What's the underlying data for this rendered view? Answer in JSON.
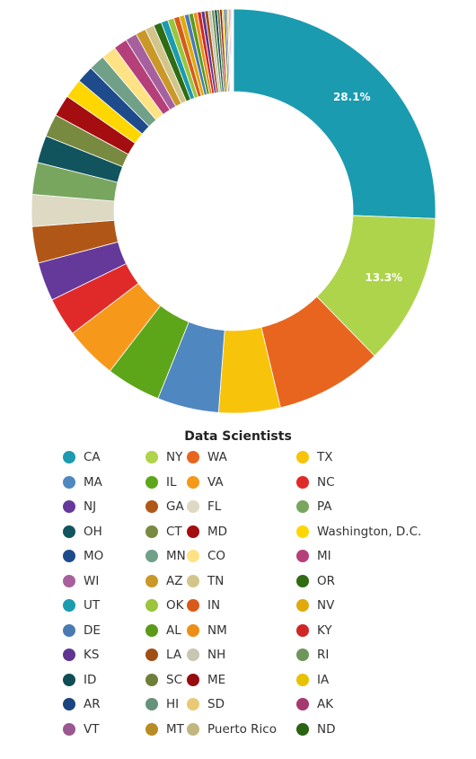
{
  "chart_data": {
    "type": "pie",
    "subtype": "donut",
    "title": "Data Scientists",
    "value_unit": "%",
    "shown_labels": [
      "28.1%",
      "13.3%"
    ],
    "categories": [
      "CA",
      "NY",
      "WA",
      "TX",
      "MA",
      "IL",
      "VA",
      "NC",
      "NJ",
      "GA",
      "FL",
      "PA",
      "OH",
      "CT",
      "MD",
      "Washington, D.C.",
      "MO",
      "MN",
      "CO",
      "MI",
      "WI",
      "AZ",
      "TN",
      "OR",
      "UT",
      "OK",
      "IN",
      "NV",
      "DE",
      "AL",
      "NM",
      "KY",
      "KS",
      "LA",
      "NH",
      "RI",
      "ID",
      "SC",
      "ME",
      "IA",
      "AR",
      "HI",
      "SD",
      "AK",
      "VT",
      "MT",
      "Puerto Rico",
      "ND"
    ],
    "values": [
      28.1,
      13.3,
      9.4,
      5.4,
      5.4,
      4.8,
      4.6,
      3.4,
      3.4,
      3.2,
      2.8,
      2.8,
      2.4,
      2.0,
      1.9,
      1.7,
      1.5,
      1.4,
      1.3,
      1.2,
      1.0,
      0.9,
      0.8,
      0.7,
      0.6,
      0.55,
      0.5,
      0.45,
      0.4,
      0.38,
      0.36,
      0.34,
      0.32,
      0.3,
      0.28,
      0.26,
      0.24,
      0.22,
      0.2,
      0.18,
      0.16,
      0.14,
      0.12,
      0.1,
      0.09,
      0.08,
      0.07,
      0.06
    ],
    "colors": [
      "#1a9bb0",
      "#aed44b",
      "#e8651f",
      "#f8c30b",
      "#4f87c0",
      "#5ea619",
      "#f6991b",
      "#e02a2a",
      "#65399a",
      "#b05717",
      "#ddd9c3",
      "#78a65f",
      "#11545e",
      "#788a3f",
      "#a40e11",
      "#ffd700",
      "#1e4b8b",
      "#70a088",
      "#ffe283",
      "#b54079",
      "#a7609e",
      "#c99827",
      "#d2c58c",
      "#2f6c14",
      "#1a9bb0",
      "#9ac53c",
      "#d85a1a",
      "#e0aa0b",
      "#4a7ab2",
      "#5a9a18",
      "#ec8f17",
      "#d02626",
      "#5f3591",
      "#9f4f15",
      "#c8c5b0",
      "#6f965a",
      "#104d56",
      "#6f7f3a",
      "#960d10",
      "#e6c200",
      "#1b447e",
      "#66927c",
      "#e9c974",
      "#a43a6e",
      "#9a5790",
      "#b88b24",
      "#c2b680",
      "#2a6312"
    ]
  }
}
